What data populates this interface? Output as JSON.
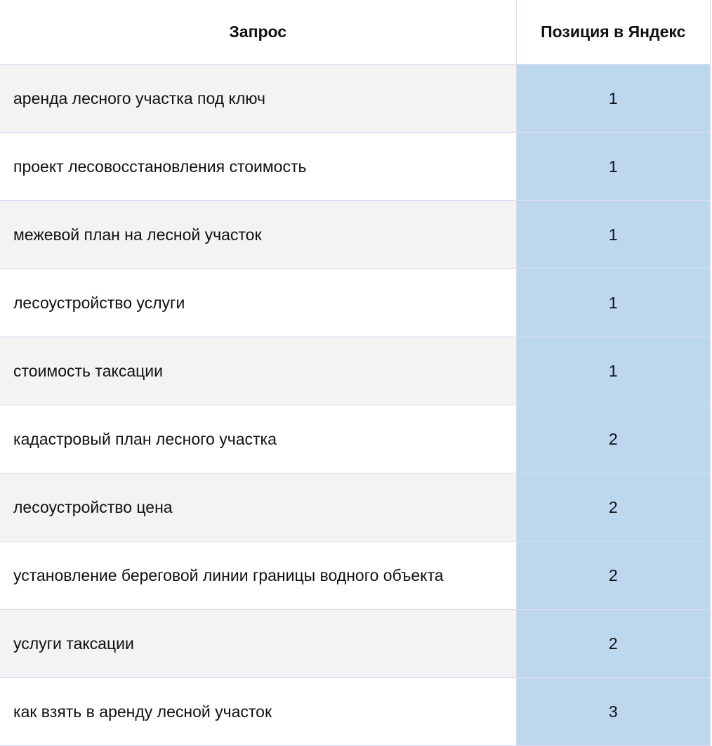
{
  "table": {
    "headers": {
      "query": "Запрос",
      "position": "Позиция в Яндекс"
    },
    "rows": [
      {
        "query": "аренда лесного участка под ключ",
        "position": "1"
      },
      {
        "query": "проект лесовосстановления стоимость",
        "position": "1"
      },
      {
        "query": "межевой план на лесной участок",
        "position": "1"
      },
      {
        "query": "лесоустройство услуги",
        "position": "1"
      },
      {
        "query": "стоимость таксации",
        "position": "1"
      },
      {
        "query": "кадастровый план лесного участка",
        "position": "2"
      },
      {
        "query": "лесоустройство цена",
        "position": "2"
      },
      {
        "query": "установление береговой линии границы водного объекта",
        "position": "2"
      },
      {
        "query": "услуги таксации",
        "position": "2"
      },
      {
        "query": "как взять в аренду лесной участок",
        "position": "3"
      }
    ],
    "colors": {
      "position_cell": "#bdd7ee",
      "striped_row": "#f3f3f3",
      "border": "#d9dcf3"
    }
  }
}
